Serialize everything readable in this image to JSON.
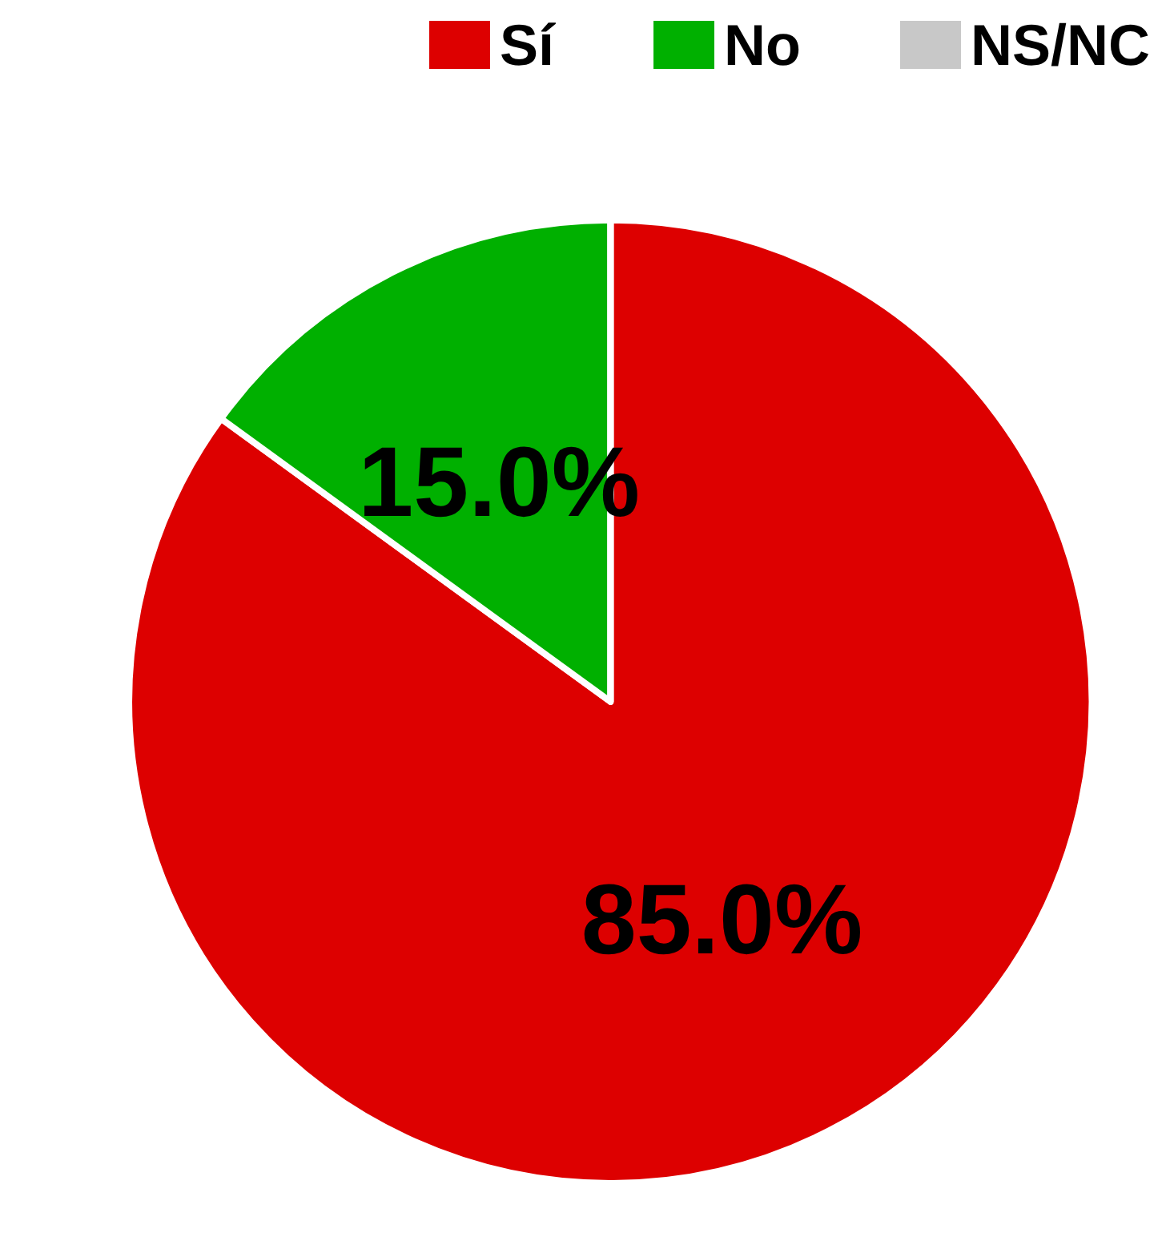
{
  "chart_data": {
    "type": "pie",
    "categories": [
      "Sí",
      "No",
      "NS/NC"
    ],
    "values": [
      85.0,
      15.0,
      0
    ],
    "colors": [
      "#dd0000",
      "#00b000",
      "#c8c8c8"
    ],
    "value_labels": [
      "85.0%",
      "15.0%",
      null
    ],
    "legend": "top right"
  }
}
